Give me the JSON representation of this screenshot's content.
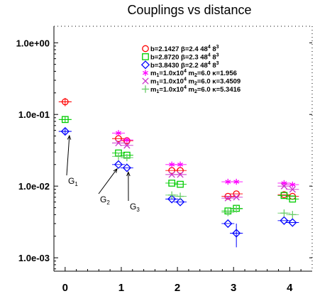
{
  "chart_data": {
    "type": "scatter",
    "title": "Couplings vs distance",
    "xlabel": "",
    "ylabel": "",
    "y_scale": "log",
    "xlim": [
      -0.2,
      4.4
    ],
    "ylim": [
      0.00065,
      1.7
    ],
    "x_ticks": [
      0,
      1,
      2,
      3,
      4
    ],
    "y_ticks": [
      {
        "value": 1.0,
        "label": "1.0e+00"
      },
      {
        "value": 0.1,
        "label": "1.0e-01"
      },
      {
        "value": 0.01,
        "label": "1.0e-02"
      },
      {
        "value": 0.001,
        "label": "1.0e-03"
      }
    ],
    "legend_position": "top-center",
    "series": [
      {
        "label_main": "b=2.1427 β=2.4 48",
        "sup1": "4",
        "label_tail": " 8",
        "sup2": "3",
        "marker": "circle",
        "color": "#ff0000",
        "points": [
          {
            "x": 0,
            "y": 0.15,
            "err": 0.02
          },
          {
            "x": 0.95,
            "y": 0.046
          },
          {
            "x": 1.1,
            "y": 0.043
          },
          {
            "x": 1.9,
            "y": 0.0165
          },
          {
            "x": 2.05,
            "y": 0.0165
          },
          {
            "x": 2.9,
            "y": 0.0072
          },
          {
            "x": 3.05,
            "y": 0.0078
          },
          {
            "x": 3.9,
            "y": 0.0076
          },
          {
            "x": 4.05,
            "y": 0.0072
          }
        ]
      },
      {
        "label_main": "b=2.8720 β=2.3 48",
        "sup1": "4",
        "label_tail": " 8",
        "sup2": "3",
        "marker": "square",
        "color": "#00cc00",
        "points": [
          {
            "x": 0,
            "y": 0.085,
            "err": 0.008
          },
          {
            "x": 0.95,
            "y": 0.029
          },
          {
            "x": 1.1,
            "y": 0.027
          },
          {
            "x": 1.9,
            "y": 0.011
          },
          {
            "x": 2.05,
            "y": 0.0106
          },
          {
            "x": 2.9,
            "y": 0.0045
          },
          {
            "x": 3.05,
            "y": 0.0049
          },
          {
            "x": 3.9,
            "y": 0.0074
          },
          {
            "x": 4.05,
            "y": 0.0066
          }
        ]
      },
      {
        "label_main": "b=3.8430 β=2.2 48",
        "sup1": "4",
        "label_tail": " 8",
        "sup2": "3",
        "marker": "diamond",
        "color": "#0000ff",
        "points": [
          {
            "x": 0,
            "y": 0.058,
            "err": 0.005
          },
          {
            "x": 0.95,
            "y": 0.02
          },
          {
            "x": 1.1,
            "y": 0.018
          },
          {
            "x": 1.9,
            "y": 0.0066
          },
          {
            "x": 2.05,
            "y": 0.006
          },
          {
            "x": 2.9,
            "y": 0.003
          },
          {
            "x": 3.05,
            "y": 0.0022,
            "err": 0.0008
          },
          {
            "x": 3.9,
            "y": 0.0033
          },
          {
            "x": 4.05,
            "y": 0.0031
          }
        ]
      },
      {
        "label_main": "m",
        "sub1": "1",
        "mid": "=1.0x10",
        "sup1": "4",
        "mid2": " m",
        "sub2": "2",
        "label_tail": "=6.0 κ=1.956",
        "marker": "star",
        "color": "#ff00ff",
        "points": [
          {
            "x": 0.95,
            "y": 0.055
          },
          {
            "x": 1.1,
            "y": 0.044
          },
          {
            "x": 1.9,
            "y": 0.02
          },
          {
            "x": 2.05,
            "y": 0.02
          },
          {
            "x": 2.9,
            "y": 0.0115
          },
          {
            "x": 3.05,
            "y": 0.0115
          },
          {
            "x": 3.9,
            "y": 0.011
          },
          {
            "x": 4.05,
            "y": 0.0105
          }
        ]
      },
      {
        "label_main": "m",
        "sub1": "1",
        "mid": "=1.0x10",
        "sup1": "4",
        "mid2": " m",
        "sub2": "2",
        "label_tail": "=6.0 κ=3.4509",
        "marker": "x",
        "color": "#cc33cc",
        "points": [
          {
            "x": 0.95,
            "y": 0.04
          },
          {
            "x": 1.1,
            "y": 0.037
          },
          {
            "x": 1.9,
            "y": 0.0145
          },
          {
            "x": 2.05,
            "y": 0.0145
          },
          {
            "x": 2.9,
            "y": 0.0068
          },
          {
            "x": 3.05,
            "y": 0.007
          },
          {
            "x": 3.9,
            "y": 0.01
          },
          {
            "x": 4.05,
            "y": 0.009
          }
        ]
      },
      {
        "label_main": "m",
        "sub1": "1",
        "mid": "=1.0x10",
        "sup1": "4",
        "mid2": " m",
        "sub2": "2",
        "label_tail": "=6.0 κ=5.3416",
        "marker": "plus",
        "color": "#66cc66",
        "points": [
          {
            "x": 0.95,
            "y": 0.026
          },
          {
            "x": 1.1,
            "y": 0.025
          },
          {
            "x": 1.9,
            "y": 0.0075
          },
          {
            "x": 2.05,
            "y": 0.0072
          },
          {
            "x": 2.9,
            "y": 0.0043
          },
          {
            "x": 3.05,
            "y": 0.0048
          },
          {
            "x": 3.9,
            "y": 0.0042
          },
          {
            "x": 4.05,
            "y": 0.004
          }
        ]
      }
    ],
    "annotations": [
      {
        "base": "G",
        "sub": "1"
      },
      {
        "base": "G",
        "sub": "2"
      },
      {
        "base": "G",
        "sub": "3"
      }
    ]
  }
}
